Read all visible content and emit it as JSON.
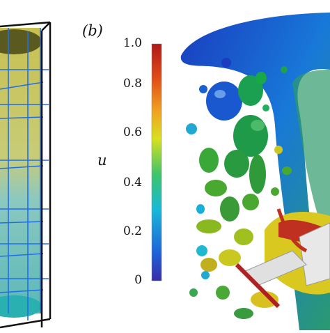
{
  "panel_label": "(b)",
  "colorbar": {
    "variable": "u",
    "ticks": [
      "1.0",
      "0.8",
      "0.6",
      "0.4",
      "0.2",
      "0"
    ],
    "range": [
      0,
      1
    ],
    "colors": [
      "#3a2ca8",
      "#1f63d8",
      "#18b8d8",
      "#3ec46a",
      "#d8e020",
      "#f0a020",
      "#e05018",
      "#b01818"
    ]
  }
}
